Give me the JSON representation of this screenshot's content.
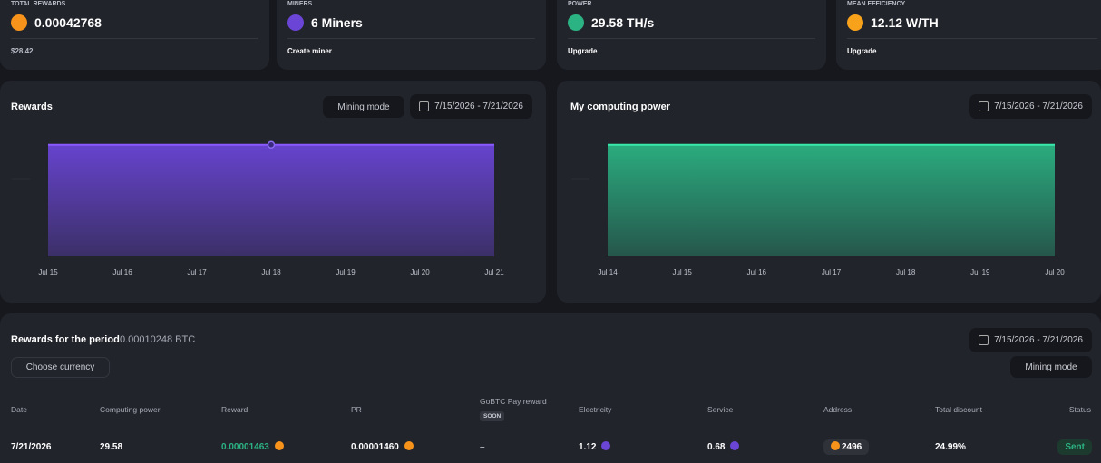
{
  "cards": [
    {
      "label": "TOTAL REWARDS",
      "value": "0.00042768",
      "footer": "$28.42"
    },
    {
      "label": "MINERS",
      "value": "6 Miners",
      "footer": "Create miner"
    },
    {
      "label": "POWER",
      "value": "29.58 TH/s",
      "footer": "Upgrade"
    },
    {
      "label": "MEAN EFFICIENCY",
      "value": "12.12 W/TH",
      "footer": "Upgrade"
    }
  ],
  "chart_data": [
    {
      "type": "area",
      "title": "Rewards",
      "control": "Mining mode",
      "date_range": "7/15/2026 - 7/21/2026",
      "categories": [
        "Jul 15",
        "Jul 16",
        "Jul 17",
        "Jul 18",
        "Jul 19",
        "Jul 20",
        "Jul 21"
      ],
      "values": [
        1.464e-05,
        1.464e-05,
        1.464e-05,
        1.464e-05,
        1.464e-05,
        1.464e-05,
        1.463e-05
      ],
      "color": "#6a45d6"
    },
    {
      "type": "area",
      "title": "My computing power",
      "date_range": "7/15/2026 - 7/21/2026",
      "categories": [
        "Jul 14",
        "Jul 15",
        "Jul 16",
        "Jul 17",
        "Jul 18",
        "Jul 19",
        "Jul 20"
      ],
      "values": [
        29.58,
        29.58,
        29.58,
        29.58,
        29.58,
        29.58,
        29.58
      ],
      "color": "#2bb383"
    }
  ],
  "rewards_table": {
    "title": "Rewards for the period",
    "total": "0.00010248 BTC",
    "date_range": "7/15/2026 - 7/21/2026",
    "currency_select": "Choose currency",
    "mode_select": "Mining mode",
    "badge": "SOON",
    "columns": [
      "Date",
      "Computing power",
      "Reward",
      "PR",
      "GoBTC Pay reward",
      "Electricity",
      "Service",
      "Address",
      "Total discount",
      "Status"
    ],
    "rows": [
      [
        "7/21/2026",
        "29.58",
        "0.00001463",
        "0.00001460",
        "–",
        "1.12",
        "0.68",
        "2496",
        "24.99%",
        "Sent"
      ]
    ]
  }
}
